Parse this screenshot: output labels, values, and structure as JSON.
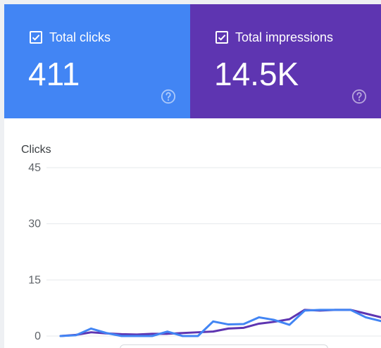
{
  "metrics": {
    "clicks": {
      "label": "Total clicks",
      "value": "411",
      "checked": true,
      "color": "#4285f4",
      "icon": "checkbox-checked-icon",
      "help_icon": "help-icon"
    },
    "impressions": {
      "label": "Total impressions",
      "value": "14.5K",
      "checked": true,
      "color": "#5e35b1",
      "icon": "checkbox-checked-icon",
      "help_icon": "help-icon"
    }
  },
  "chart": {
    "title": "Clicks"
  },
  "chart_data": {
    "type": "line",
    "title": "",
    "ylabel": "Clicks",
    "xlabel": "",
    "ylim": [
      0,
      45
    ],
    "y_ticks": [
      0,
      15,
      30,
      45
    ],
    "grid": true,
    "legend": "none",
    "x": [
      1,
      2,
      3,
      4,
      5,
      6,
      7,
      8,
      9,
      10,
      11,
      12,
      13,
      14,
      15,
      16,
      17,
      18,
      19,
      20,
      21,
      22
    ],
    "series": [
      {
        "color": "#5e35b1",
        "values": [
          0,
          0.3,
          1,
          0.7,
          0.5,
          0.4,
          0.6,
          0.6,
          0.8,
          1,
          1.2,
          2,
          2.2,
          3.3,
          3.8,
          4.5,
          7,
          6.8,
          7,
          7,
          6,
          5
        ]
      },
      {
        "color": "#4285f4",
        "values": [
          0,
          0.2,
          2,
          0.8,
          0,
          0,
          0,
          1.2,
          0,
          0,
          3.9,
          3.1,
          3.2,
          5,
          4.3,
          3,
          6.8,
          7,
          7,
          7,
          5,
          4
        ]
      }
    ]
  }
}
